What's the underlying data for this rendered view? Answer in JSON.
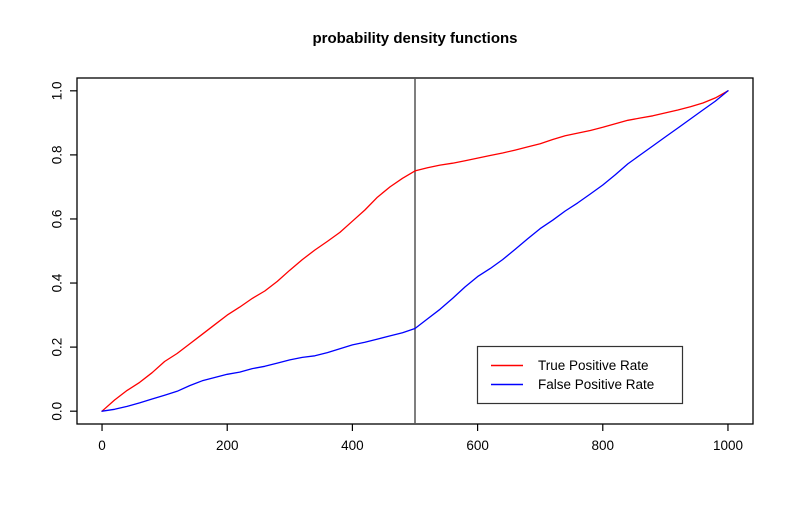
{
  "figure": {
    "background": "#ffffff"
  },
  "chart_data": {
    "type": "line",
    "title": "probability density functions",
    "xlabel": "",
    "ylabel": "",
    "xlim": [
      0,
      1000
    ],
    "ylim": [
      0,
      1
    ],
    "axis_expansion": 0.04,
    "grid": "off",
    "x_ticks": [
      0,
      200,
      400,
      600,
      800,
      1000
    ],
    "x_tick_labels": [
      "0",
      "200",
      "400",
      "600",
      "800",
      "1000"
    ],
    "y_ticks": [
      0,
      0.2,
      0.4,
      0.6,
      0.8,
      1.0
    ],
    "y_tick_labels": [
      "0.0",
      "0.2",
      "0.4",
      "0.6",
      "0.8",
      "1.0"
    ],
    "vline_x": 500,
    "vline_color": "#555555",
    "border_color": "#000000",
    "x": [
      0,
      20,
      40,
      60,
      80,
      100,
      120,
      140,
      160,
      180,
      200,
      220,
      240,
      260,
      280,
      300,
      320,
      340,
      360,
      380,
      400,
      420,
      440,
      460,
      480,
      500,
      520,
      540,
      560,
      580,
      600,
      620,
      640,
      660,
      680,
      700,
      720,
      740,
      760,
      780,
      800,
      820,
      840,
      860,
      880,
      900,
      920,
      940,
      960,
      980,
      1000
    ],
    "series": [
      {
        "name": "True Positive Rate",
        "color": "#ff0000",
        "values": [
          0.0,
          0.035,
          0.065,
          0.09,
          0.12,
          0.155,
          0.18,
          0.21,
          0.24,
          0.27,
          0.3,
          0.325,
          0.352,
          0.375,
          0.405,
          0.44,
          0.473,
          0.503,
          0.53,
          0.558,
          0.593,
          0.628,
          0.668,
          0.7,
          0.727,
          0.75,
          0.76,
          0.768,
          0.774,
          0.782,
          0.79,
          0.798,
          0.806,
          0.815,
          0.825,
          0.835,
          0.848,
          0.86,
          0.868,
          0.876,
          0.886,
          0.897,
          0.908,
          0.915,
          0.922,
          0.931,
          0.94,
          0.95,
          0.962,
          0.978,
          1.0
        ]
      },
      {
        "name": "False Positive Rate",
        "color": "#0000ff",
        "values": [
          0.0,
          0.006,
          0.015,
          0.026,
          0.038,
          0.05,
          0.062,
          0.08,
          0.095,
          0.105,
          0.115,
          0.122,
          0.133,
          0.14,
          0.15,
          0.16,
          0.168,
          0.173,
          0.183,
          0.195,
          0.207,
          0.215,
          0.225,
          0.235,
          0.245,
          0.258,
          0.288,
          0.318,
          0.352,
          0.388,
          0.42,
          0.445,
          0.473,
          0.505,
          0.538,
          0.57,
          0.596,
          0.625,
          0.65,
          0.678,
          0.706,
          0.738,
          0.772,
          0.8,
          0.828,
          0.856,
          0.884,
          0.912,
          0.94,
          0.968,
          1.0
        ]
      }
    ],
    "legend": {
      "position": "bottom-right",
      "items": [
        {
          "label": "True Positive Rate",
          "color": "#ff0000"
        },
        {
          "label": "False Positive Rate",
          "color": "#0000ff"
        }
      ]
    }
  }
}
